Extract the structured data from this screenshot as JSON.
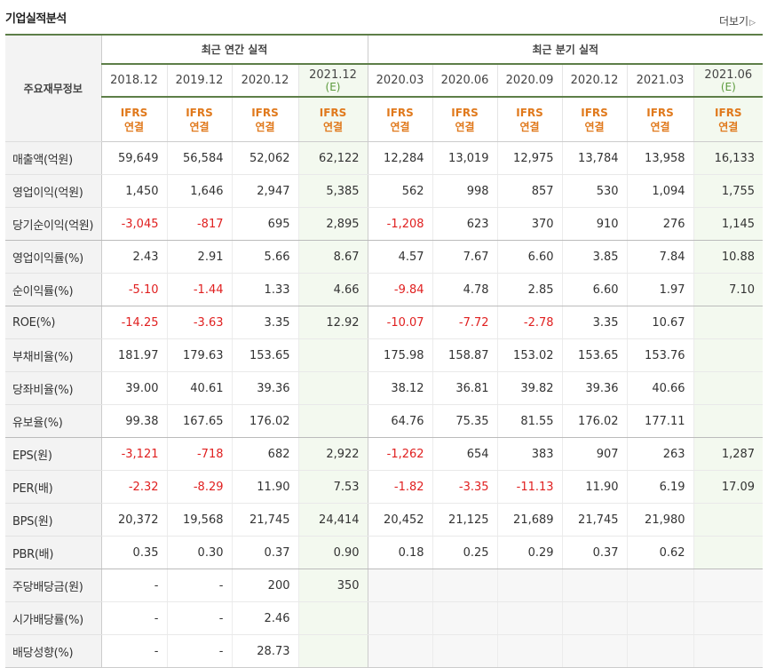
{
  "title": "기업실적분석",
  "more_label": "더보기",
  "more_arrow": "▷",
  "header": {
    "label": "주요재무정보",
    "group_annual": "최근 연간 실적",
    "group_quarter": "최근 분기 실적",
    "periods": [
      {
        "date": "2018.12",
        "est": ""
      },
      {
        "date": "2019.12",
        "est": ""
      },
      {
        "date": "2020.12",
        "est": ""
      },
      {
        "date": "2021.12",
        "est": "(E)"
      },
      {
        "date": "2020.03",
        "est": ""
      },
      {
        "date": "2020.06",
        "est": ""
      },
      {
        "date": "2020.09",
        "est": ""
      },
      {
        "date": "2020.12",
        "est": ""
      },
      {
        "date": "2021.03",
        "est": ""
      },
      {
        "date": "2021.06",
        "est": "(E)"
      }
    ],
    "standard": [
      "IFRS",
      "연결"
    ]
  },
  "rows": [
    {
      "label": "매출액(억원)",
      "values": [
        "59,649",
        "56,584",
        "52,062",
        "62,122",
        "12,284",
        "13,019",
        "12,975",
        "13,784",
        "13,958",
        "16,133"
      ]
    },
    {
      "label": "영업이익(억원)",
      "values": [
        "1,450",
        "1,646",
        "2,947",
        "5,385",
        "562",
        "998",
        "857",
        "530",
        "1,094",
        "1,755"
      ]
    },
    {
      "label": "당기순이익(억원)",
      "values": [
        "-3,045",
        "-817",
        "695",
        "2,895",
        "-1,208",
        "623",
        "370",
        "910",
        "276",
        "1,145"
      ]
    },
    {
      "label": "영업이익률(%)",
      "values": [
        "2.43",
        "2.91",
        "5.66",
        "8.67",
        "4.57",
        "7.67",
        "6.60",
        "3.85",
        "7.84",
        "10.88"
      ]
    },
    {
      "label": "순이익률(%)",
      "values": [
        "-5.10",
        "-1.44",
        "1.33",
        "4.66",
        "-9.84",
        "4.78",
        "2.85",
        "6.60",
        "1.97",
        "7.10"
      ]
    },
    {
      "label": "ROE(%)",
      "values": [
        "-14.25",
        "-3.63",
        "3.35",
        "12.92",
        "-10.07",
        "-7.72",
        "-2.78",
        "3.35",
        "10.67",
        ""
      ]
    },
    {
      "label": "부채비율(%)",
      "values": [
        "181.97",
        "179.63",
        "153.65",
        "",
        "175.98",
        "158.87",
        "153.02",
        "153.65",
        "153.76",
        ""
      ]
    },
    {
      "label": "당좌비율(%)",
      "values": [
        "39.00",
        "40.61",
        "39.36",
        "",
        "38.12",
        "36.81",
        "39.82",
        "39.36",
        "40.66",
        ""
      ]
    },
    {
      "label": "유보율(%)",
      "values": [
        "99.38",
        "167.65",
        "176.02",
        "",
        "64.76",
        "75.35",
        "81.55",
        "176.02",
        "177.11",
        ""
      ]
    },
    {
      "label": "EPS(원)",
      "values": [
        "-3,121",
        "-718",
        "682",
        "2,922",
        "-1,262",
        "654",
        "383",
        "907",
        "263",
        "1,287"
      ]
    },
    {
      "label": "PER(배)",
      "values": [
        "-2.32",
        "-8.29",
        "11.90",
        "7.53",
        "-1.82",
        "-3.35",
        "-11.13",
        "11.90",
        "6.19",
        "17.09"
      ]
    },
    {
      "label": "BPS(원)",
      "values": [
        "20,372",
        "19,568",
        "21,745",
        "24,414",
        "20,452",
        "21,125",
        "21,689",
        "21,745",
        "21,980",
        ""
      ]
    },
    {
      "label": "PBR(배)",
      "values": [
        "0.35",
        "0.30",
        "0.37",
        "0.90",
        "0.18",
        "0.25",
        "0.29",
        "0.37",
        "0.62",
        ""
      ]
    },
    {
      "label": "주당배당금(원)",
      "values": [
        "-",
        "-",
        "200",
        "350",
        "",
        "",
        "",
        "",
        "",
        ""
      ]
    },
    {
      "label": "시가배당률(%)",
      "values": [
        "-",
        "-",
        "2.46",
        "",
        "",
        "",
        "",
        "",
        "",
        ""
      ]
    },
    {
      "label": "배당성향(%)",
      "values": [
        "-",
        "-",
        "28.73",
        "",
        "",
        "",
        "",
        "",
        "",
        ""
      ]
    }
  ],
  "colors": {
    "negative": "#e02020",
    "standard": "#e0791c",
    "estimate_bg": "#f3f9ef",
    "estimate_text": "#5b9a3c",
    "accent_border": "#5d7e48"
  }
}
